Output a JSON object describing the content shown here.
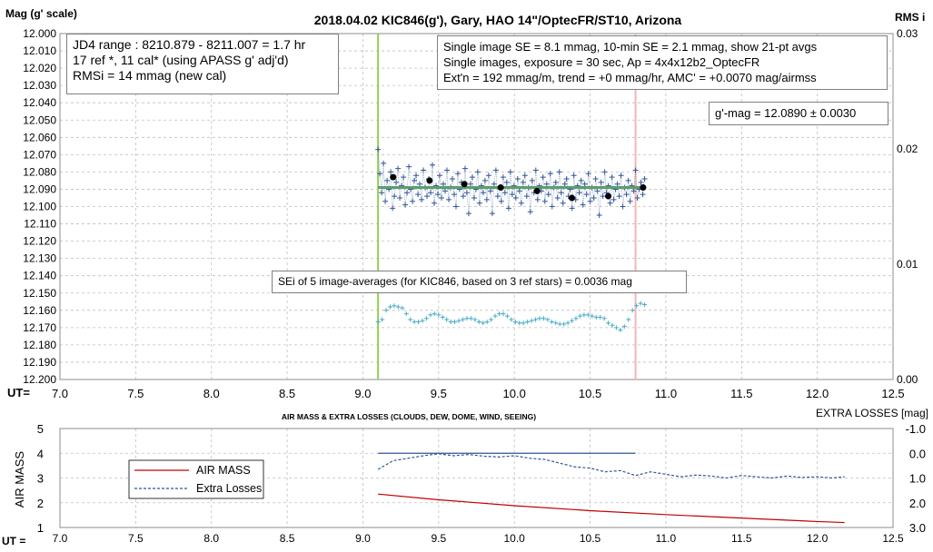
{
  "chart_data": [
    {
      "type": "scatter",
      "title": "2018.04.02  KIC846(g'),  Gary, HAO  14\"/OptecFR/ST10,  Arizona",
      "ylabel": "Mag (g' scale)",
      "y2label": "RMS i",
      "xlabel": "UT=",
      "xlim": [
        7.0,
        12.5
      ],
      "ylim": [
        12.0,
        12.2
      ],
      "y_inverted": true,
      "y2lim": [
        0.0,
        0.03
      ],
      "x_ticks": [
        "7.0",
        "7.5",
        "8.0",
        "8.5",
        "9.0",
        "9.5",
        "10.0",
        "10.5",
        "11.0",
        "11.5",
        "12.0",
        "12.5"
      ],
      "y_ticks": [
        "12.000",
        "12.010",
        "12.020",
        "12.030",
        "12.040",
        "12.050",
        "12.060",
        "12.070",
        "12.080",
        "12.090",
        "12.100",
        "12.110",
        "12.120",
        "12.130",
        "12.140",
        "12.150",
        "12.160",
        "12.170",
        "12.180",
        "12.190",
        "12.200"
      ],
      "y2_ticks": [
        "0.00",
        "0.01",
        "0.02",
        "0.03"
      ],
      "grid": true,
      "vlines": [
        {
          "x": 9.1,
          "color": "#92d050",
          "name": "start"
        },
        {
          "x": 10.8,
          "color": "#f4b6b6",
          "name": "end"
        }
      ],
      "model_line": {
        "x": [
          9.1,
          10.85
        ],
        "y": [
          12.089,
          12.089
        ],
        "color": "#5b9e6c"
      },
      "series": [
        {
          "name": "Single images",
          "color": "#2f5597",
          "marker": "+",
          "x_range": [
            9.1,
            10.86
          ],
          "mean": 12.089,
          "values": [
            12.067,
            12.081,
            12.092,
            12.075,
            12.097,
            12.085,
            12.09,
            12.08,
            12.101,
            12.094,
            12.086,
            12.078,
            12.095,
            12.088,
            12.083,
            12.099,
            12.092,
            12.077,
            12.09,
            12.097,
            12.085,
            12.082,
            12.093,
            12.087,
            12.096,
            12.079,
            12.089,
            12.094,
            12.084,
            12.092,
            12.076,
            12.098,
            12.088,
            12.093,
            12.082,
            12.095,
            12.087,
            12.091,
            12.079,
            12.096,
            12.089,
            12.084,
            12.093,
            12.1,
            12.081,
            12.09,
            12.086,
            12.094,
            12.078,
            12.092,
            12.104,
            12.087,
            12.083,
            12.095,
            12.09,
            12.08,
            12.098,
            12.088,
            12.092,
            12.085,
            12.096,
            12.082,
            12.091,
            12.104,
            12.087,
            12.079,
            12.094,
            12.089,
            12.097,
            12.083,
            12.092,
            12.086,
            12.101,
            12.08,
            12.093,
            12.088,
            12.095,
            12.084,
            12.091,
            12.098,
            12.086,
            12.082,
            12.094,
            12.089,
            12.103,
            12.085,
            12.092,
            12.079,
            12.096,
            12.088,
            12.091,
            12.083,
            12.097,
            12.087,
            12.093,
            12.081,
            12.1,
            12.089,
            12.086,
            12.095,
            12.08,
            12.092,
            12.098,
            12.087,
            12.084,
            12.094,
            12.09,
            12.101,
            12.082,
            12.096,
            12.088,
            12.092,
            12.085,
            12.099,
            12.087,
            12.093,
            12.081,
            12.097,
            12.089,
            12.095,
            12.084,
            12.091,
            12.105,
            12.086,
            12.094,
            12.08,
            12.092,
            12.088,
            12.098,
            12.083,
            12.096,
            12.09,
            12.087,
            12.094,
            12.082,
            12.1,
            12.089,
            12.093,
            12.085,
            12.097,
            12.088,
            12.091,
            12.079,
            12.095,
            12.09,
            12.086,
            12.093,
            12.084
          ]
        },
        {
          "name": "21-pt avgs",
          "color": "#000000",
          "marker": "dot",
          "x": [
            9.2,
            9.44,
            9.67,
            9.91,
            10.15,
            10.38,
            10.62,
            10.85
          ],
          "values": [
            12.083,
            12.085,
            12.087,
            12.089,
            12.091,
            12.095,
            12.094,
            12.089
          ]
        },
        {
          "name": "RMSi",
          "color": "#4bacc6",
          "marker": "+",
          "axis": "y2",
          "x_range": [
            9.1,
            10.86
          ],
          "values": [
            0.005,
            0.0052,
            0.006,
            0.0063,
            0.0064,
            0.0063,
            0.0062,
            0.0057,
            0.0052,
            0.005,
            0.005,
            0.0051,
            0.0053,
            0.0056,
            0.0057,
            0.0056,
            0.0054,
            0.0052,
            0.005,
            0.005,
            0.0051,
            0.0052,
            0.0053,
            0.0053,
            0.0052,
            0.005,
            0.0049,
            0.005,
            0.0052,
            0.0055,
            0.0057,
            0.0057,
            0.0055,
            0.0052,
            0.005,
            0.0049,
            0.0049,
            0.005,
            0.0051,
            0.0052,
            0.0053,
            0.0053,
            0.0052,
            0.005,
            0.0049,
            0.0048,
            0.0048,
            0.0049,
            0.0051,
            0.0053,
            0.0055,
            0.0056,
            0.0056,
            0.0055,
            0.0054,
            0.0054,
            0.0053,
            0.0049,
            0.0047,
            0.0045,
            0.0043,
            0.0046,
            0.0052,
            0.006,
            0.0064,
            0.0066,
            0.0065
          ]
        }
      ],
      "annotations": {
        "left_box": [
          "JD4 range : 8210.879 - 8211.007 = 1.7  hr",
          "17 ref *, 11 cal* (using APASS g' adj'd)",
          "RMSi = 14 mmag (new cal)"
        ],
        "right_box": [
          "Single image SE = 8.1 mmag, 10-min SE = 2.1 mmag, show  21-pt avgs",
          "Single images, exposure = 30 sec, Ap = 4x4x12b2_OptecFR",
          "Ext'n = 192 mmag/m, trend =  +0 mmag/hr, AMC' = +0.0070 mag/airmss"
        ],
        "mag_box": "g'-mag = 12.0890 ± 0.0030",
        "sei_box": "SEi of 5 image-averages (for KIC846, based on 3 ref stars) = 0.0036  mag"
      }
    },
    {
      "type": "line",
      "title": "AIR MASS & EXTRA LOSSES (CLOUDS, DEW, DOME, WIND, SEEING)",
      "ylabel": "AIR MASS",
      "y2label": "EXTRA LOSSES [mag]",
      "xlabel": "UT =",
      "xlim": [
        7.0,
        12.5
      ],
      "ylim": [
        1,
        5
      ],
      "y2lim": [
        -1.0,
        3.0
      ],
      "y2_inverted": true,
      "x_ticks": [
        "7.0",
        "7.5",
        "8.0",
        "8.5",
        "9.0",
        "9.5",
        "10.0",
        "10.5",
        "11.0",
        "11.5",
        "12.0",
        "12.5"
      ],
      "y_ticks": [
        "1",
        "2",
        "3",
        "4",
        "5"
      ],
      "y2_ticks": [
        "-1.0",
        "0.0",
        "1.0",
        "2.0",
        "3.0"
      ],
      "legend": {
        "placement": "left",
        "entries": [
          "AIR MASS",
          "Extra Losses"
        ]
      },
      "ref_line": {
        "x": [
          9.1,
          10.8
        ],
        "y2": 0.0,
        "color": "#2f5597"
      },
      "series": [
        {
          "name": "AIR MASS",
          "color": "#c00000",
          "style": "solid",
          "x": [
            9.1,
            9.5,
            10.0,
            10.5,
            11.0,
            11.5,
            12.0,
            12.18
          ],
          "values": [
            2.35,
            2.12,
            1.88,
            1.68,
            1.52,
            1.38,
            1.24,
            1.2
          ]
        },
        {
          "name": "Extra Losses",
          "color": "#2f5597",
          "style": "dashed",
          "axis": "y2",
          "x": [
            9.1,
            9.2,
            9.3,
            9.4,
            9.5,
            9.6,
            9.7,
            9.8,
            9.9,
            10.0,
            10.1,
            10.2,
            10.3,
            10.4,
            10.5,
            10.6,
            10.7,
            10.8,
            10.9,
            11.0,
            11.1,
            11.2,
            11.3,
            11.4,
            11.5,
            11.6,
            11.7,
            11.8,
            11.9,
            12.0,
            12.1,
            12.18
          ],
          "values": [
            0.65,
            0.3,
            0.2,
            0.1,
            0.02,
            0.1,
            0.05,
            0.12,
            0.15,
            0.1,
            0.2,
            0.25,
            0.4,
            0.55,
            0.6,
            0.75,
            0.7,
            0.9,
            0.75,
            0.85,
            0.95,
            0.88,
            0.92,
            1.0,
            0.9,
            0.95,
            1.0,
            0.92,
            0.98,
            0.95,
            1.0,
            0.95
          ]
        }
      ]
    }
  ]
}
